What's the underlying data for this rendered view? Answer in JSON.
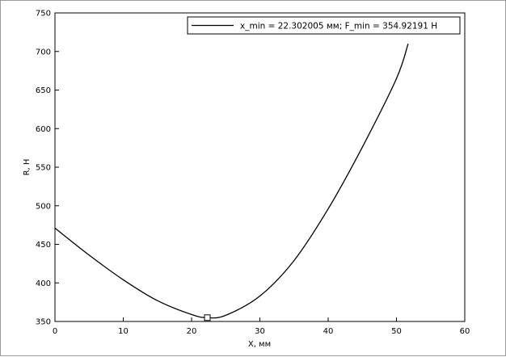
{
  "chart_data": {
    "type": "line",
    "xlabel": "X, мм",
    "ylabel": "R, Н",
    "xlim": [
      0,
      60
    ],
    "ylim": [
      350,
      750
    ],
    "x_ticks": [
      0,
      10,
      20,
      30,
      40,
      50,
      60
    ],
    "y_ticks": [
      350,
      400,
      450,
      500,
      550,
      600,
      650,
      700,
      750
    ],
    "grid": false,
    "legend_position": "top-right",
    "series": [
      {
        "name": "x_min = 22.302005 мм; F_min = 354.92191 Н",
        "color": "#000000",
        "x": [
          0,
          5,
          10,
          15,
          20,
          22.3,
          25,
          30,
          35,
          40,
          45,
          50,
          51.7
        ],
        "y": [
          471,
          436,
          404,
          377,
          359,
          354.9,
          358,
          383,
          429,
          496,
          576,
          665,
          710
        ]
      }
    ],
    "marker": {
      "x": 22.302005,
      "y": 354.92191,
      "shape": "square"
    }
  }
}
